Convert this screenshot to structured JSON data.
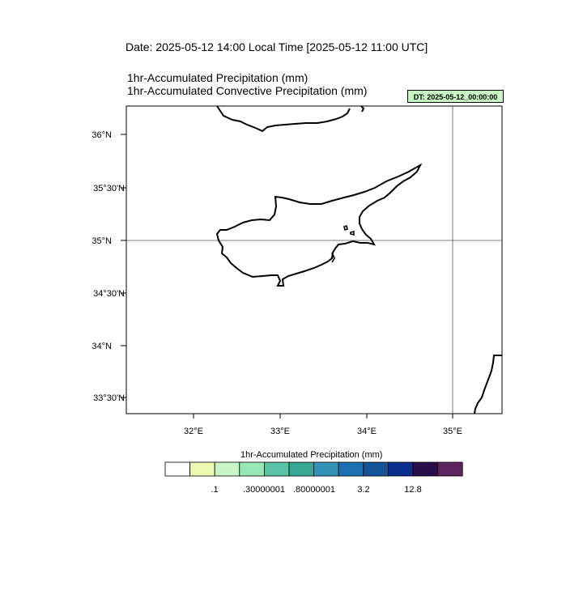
{
  "header": {
    "date_line": "Date: 2025-05-12  14:00 Local Time [2025-05-12  11:00 UTC]",
    "title_line_1": "1hr-Accumulated Precipitation   (mm)",
    "title_line_2": "1hr-Accumulated Convective Precipitation   (mm)",
    "dt_badge": "DT: 2025-05-12_00:00:00",
    "dt_badge_color": "#c7f6c2"
  },
  "map": {
    "lat_labels": [
      "36°N",
      "35°30'N",
      "35°N",
      "34°30'N",
      "34°N",
      "33°30'N"
    ],
    "lon_labels": [
      "32°E",
      "33°E",
      "34°E",
      "35°E"
    ],
    "gridlines": [
      "35°N",
      "35°E"
    ]
  },
  "colorbar": {
    "title": "1hr-Accumulated Precipitation  (mm)",
    "colors": [
      "#ffffff",
      "#edf8b1",
      "#c7f5c6",
      "#97e8b4",
      "#59c2a4",
      "#35a896",
      "#3192b6",
      "#1a70b0",
      "#145395",
      "#0b2d8e",
      "#2a0d4a",
      "#5d2560"
    ],
    "labels": [
      ".1",
      ".30000001",
      ".80000001",
      "3.2",
      "12.8"
    ]
  }
}
